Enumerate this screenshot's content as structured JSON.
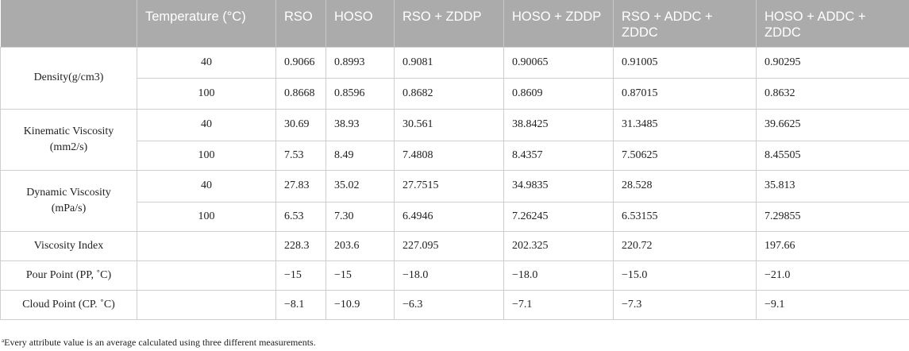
{
  "table": {
    "headers": [
      "",
      "Temperature (°C)",
      "RSO",
      "HOSO",
      "RSO + ZDDP",
      "HOSO + ZDDP",
      "RSO + ADDC + ZDDC",
      "HOSO + ADDC + ZDDC"
    ],
    "rows": [
      {
        "property": "Density(g/cm3)",
        "temperature": "40",
        "values": [
          "0.9066",
          "0.8993",
          "0.9081",
          "0.90065",
          "0.91005",
          "0.90295"
        ]
      },
      {
        "property": "",
        "temperature": "100",
        "values": [
          "0.8668",
          "0.8596",
          "0.8682",
          "0.8609",
          "0.87015",
          "0.8632"
        ]
      },
      {
        "property": "Kinematic Viscosity (mm2/s)",
        "temperature": "40",
        "values": [
          "30.69",
          "38.93",
          "30.561",
          "38.8425",
          "31.3485",
          "39.6625"
        ]
      },
      {
        "property": "",
        "temperature": "100",
        "values": [
          "7.53",
          "8.49",
          "7.4808",
          "8.4357",
          "7.50625",
          "8.45505"
        ]
      },
      {
        "property": "Dynamic Viscosity (mPa/s)",
        "temperature": "40",
        "values": [
          "27.83",
          "35.02",
          "27.7515",
          "34.9835",
          "28.528",
          "35.813"
        ]
      },
      {
        "property": "",
        "temperature": "100",
        "values": [
          "6.53",
          "7.30",
          "6.4946",
          "7.26245",
          "6.53155",
          "7.29855"
        ]
      },
      {
        "property": "Viscosity Index",
        "temperature": "",
        "values": [
          "228.3",
          "203.6",
          "227.095",
          "202.325",
          "220.72",
          "197.66"
        ]
      },
      {
        "property": "Pour Point (PP, ˚C)",
        "temperature": "",
        "values": [
          "−15",
          "−15",
          "−18.0",
          "−18.0",
          "−15.0",
          "−21.0"
        ]
      },
      {
        "property": "Cloud Point (CP. ˚C)",
        "temperature": "",
        "values": [
          "−8.1",
          "−10.9",
          "−6.3",
          "−7.1",
          "−7.3",
          "−9.1"
        ]
      }
    ]
  },
  "footnote": {
    "marker": "a",
    "text": "Every attribute value is an average calculated using three different measurements."
  }
}
